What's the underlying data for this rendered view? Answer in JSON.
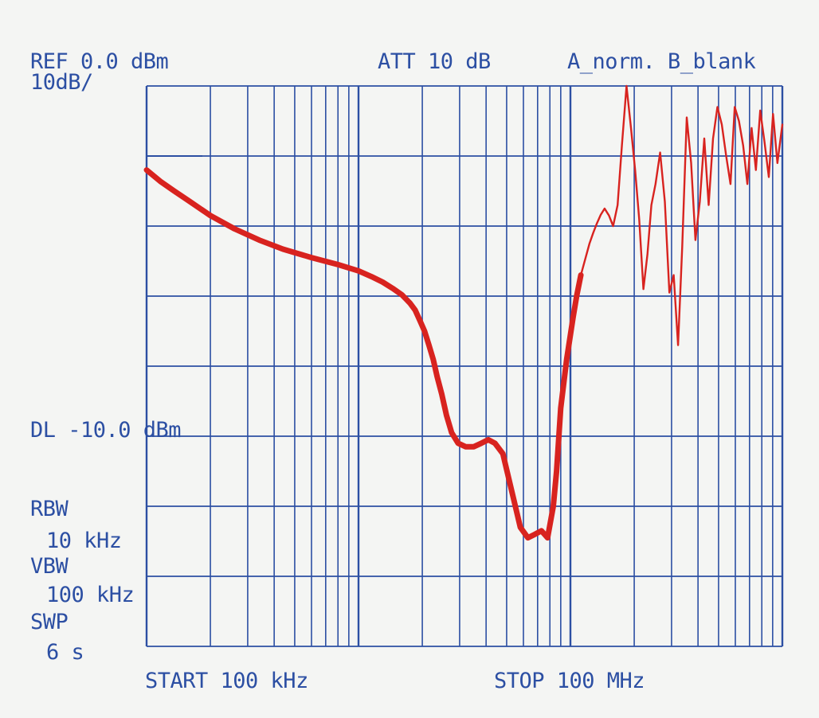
{
  "header": {
    "ref_level": "REF 0.0 dBm",
    "scale": "10dB/",
    "attenuation": "ATT 10 dB",
    "trace_mode": "A_norm. B_blank"
  },
  "display_line": {
    "label": "DL -10.0 dBm",
    "level_dbm": -10
  },
  "settings": {
    "rbw_label": "RBW",
    "rbw_value": "10 kHz",
    "vbw_label": "VBW",
    "vbw_value": "100 kHz",
    "swp_label": "SWP",
    "swp_value": "6 s"
  },
  "footer": {
    "start": "START 100 kHz",
    "stop": "STOP 100 MHz"
  },
  "colors": {
    "grid": "#2c4fa3",
    "trace": "#d8231f",
    "background": "#f4f5f3"
  },
  "chart_data": {
    "type": "line",
    "x_scale": "log",
    "xlim": [
      100000,
      100000000
    ],
    "ylim": [
      -80,
      0
    ],
    "y_unit": "dBm",
    "grid": true,
    "series": [
      {
        "x": [
          100000,
          116000,
          135000,
          160000,
          200000,
          260000,
          340000,
          440000,
          600000,
          800000,
          1000000,
          1150000,
          1300000,
          1450000,
          1600000,
          1750000,
          1850000,
          1950000,
          2050000,
          2150000,
          2250000,
          2350000,
          2470000,
          2600000,
          2750000,
          2950000,
          3200000,
          3500000,
          3800000,
          4100000,
          4400000,
          4800000,
          5300000,
          5800000,
          6300000,
          6800000,
          7300000,
          7800000,
          8300000,
          8600000,
          9000000,
          9600000,
          10300000,
          10700000,
          11200000,
          11800000,
          12300000,
          12800000,
          13300000,
          13900000,
          14500000,
          15200000,
          15900000,
          16700000,
          17500000,
          18400000,
          19300000,
          20200000,
          21100000,
          22100000,
          23100000,
          24100000,
          25200000,
          26500000,
          27900000,
          29300000,
          30700000,
          32200000,
          33700000,
          35400000,
          37100000,
          38900000,
          40800000,
          42800000,
          44900000,
          47100000,
          49400000,
          51800000,
          54300000,
          56900000,
          59600000,
          62400000,
          65300000,
          68400000,
          71600000,
          75000000,
          78600000,
          82400000,
          86300000,
          90400000,
          94800000,
          100000000
        ],
        "y": [
          -12.0,
          -13.6,
          -15.0,
          -16.5,
          -18.5,
          -20.4,
          -22.0,
          -23.3,
          -24.5,
          -25.5,
          -26.4,
          -27.2,
          -28.0,
          -28.9,
          -29.8,
          -31.0,
          -32.0,
          -33.5,
          -35.0,
          -37.0,
          -39.0,
          -41.5,
          -44.0,
          -47.0,
          -49.5,
          -51.0,
          -51.5,
          -51.5,
          -51.0,
          -50.5,
          -51.0,
          -52.5,
          -58.0,
          -63.0,
          -64.5,
          -64.0,
          -63.5,
          -64.5,
          -60.0,
          -55.0,
          -46.0,
          -39.0,
          -33.0,
          -30.0,
          -27.0,
          -24.5,
          -22.5,
          -21.0,
          -19.7,
          -18.4,
          -17.5,
          -18.5,
          -20.0,
          -17.0,
          -8.5,
          2.5,
          -6.0,
          -12.0,
          -19.0,
          -29.0,
          -24.0,
          -17.0,
          -14.0,
          -9.5,
          -16.5,
          -29.5,
          -27.0,
          -37.0,
          -23.0,
          -4.5,
          -11.0,
          -22.0,
          -16.5,
          -7.5,
          -17.0,
          -7.5,
          -3.0,
          -5.5,
          -10.0,
          -14.0,
          -3.0,
          -5.0,
          -8.5,
          -14.0,
          -6.0,
          -12.0,
          -3.5,
          -8.0,
          -13.0,
          -4.0,
          -11.0,
          -5.5
        ]
      }
    ]
  }
}
